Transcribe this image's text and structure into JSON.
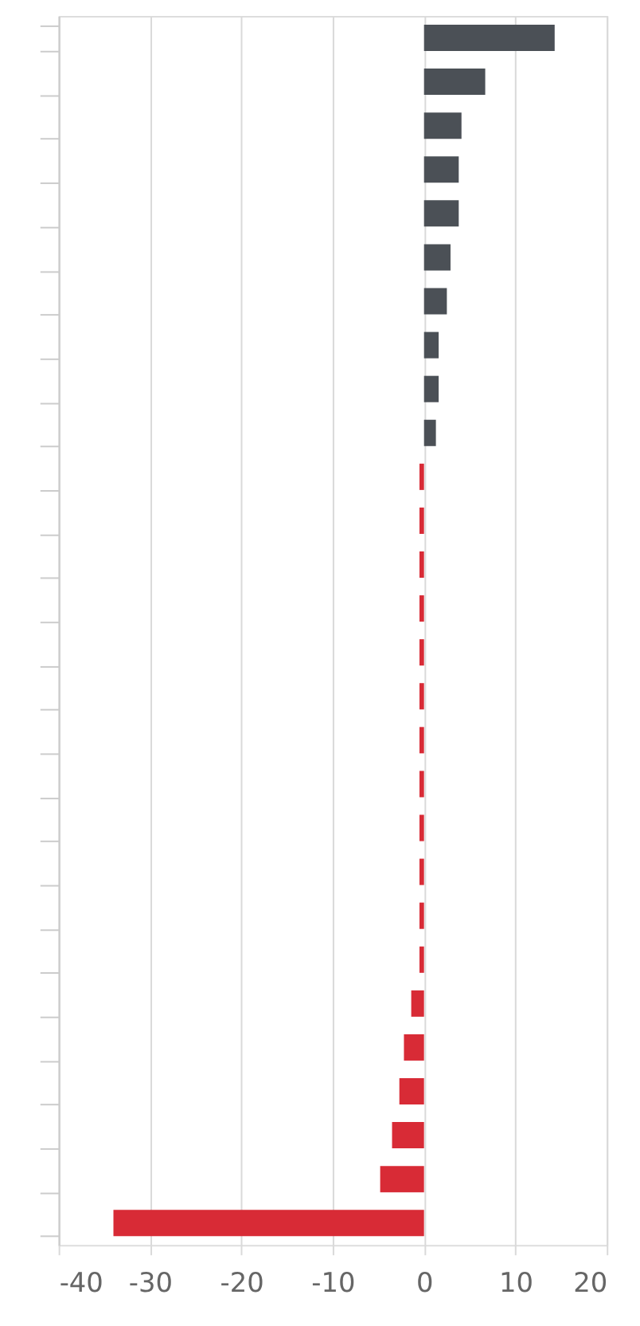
{
  "chart_data": {
    "type": "bar",
    "orientation": "horizontal",
    "categories": [
      null,
      null,
      null,
      null,
      null,
      null,
      null,
      null,
      null,
      null,
      null,
      null,
      null,
      null,
      null,
      null,
      null,
      null,
      null,
      null,
      null,
      null,
      null,
      null,
      null,
      null,
      null,
      null
    ],
    "values": [
      14.3,
      6.7,
      4.1,
      3.8,
      3.8,
      2.9,
      2.5,
      1.6,
      1.6,
      1.3,
      -0.5,
      -0.5,
      -0.5,
      -0.5,
      -0.5,
      -0.5,
      -0.5,
      -0.5,
      -0.5,
      -0.5,
      -0.5,
      -0.5,
      -1.4,
      -2.2,
      -2.7,
      -3.5,
      -4.8,
      -34
    ],
    "colors": [
      "#4b5056",
      "#4b5056",
      "#4b5056",
      "#4b5056",
      "#4b5056",
      "#4b5056",
      "#4b5056",
      "#4b5056",
      "#4b5056",
      "#4b5056",
      "#d82b36",
      "#d82b36",
      "#d82b36",
      "#d82b36",
      "#d82b36",
      "#d82b36",
      "#d82b36",
      "#d82b36",
      "#d82b36",
      "#d82b36",
      "#d82b36",
      "#d82b36",
      "#d82b36",
      "#d82b36",
      "#d82b36",
      "#d82b36",
      "#d82b36",
      "#d82b36"
    ],
    "xlim": [
      -40,
      20
    ],
    "xticks": [
      -40,
      -30,
      -20,
      -10,
      0,
      10,
      20
    ],
    "grid": "x",
    "tick_labels": "x"
  }
}
